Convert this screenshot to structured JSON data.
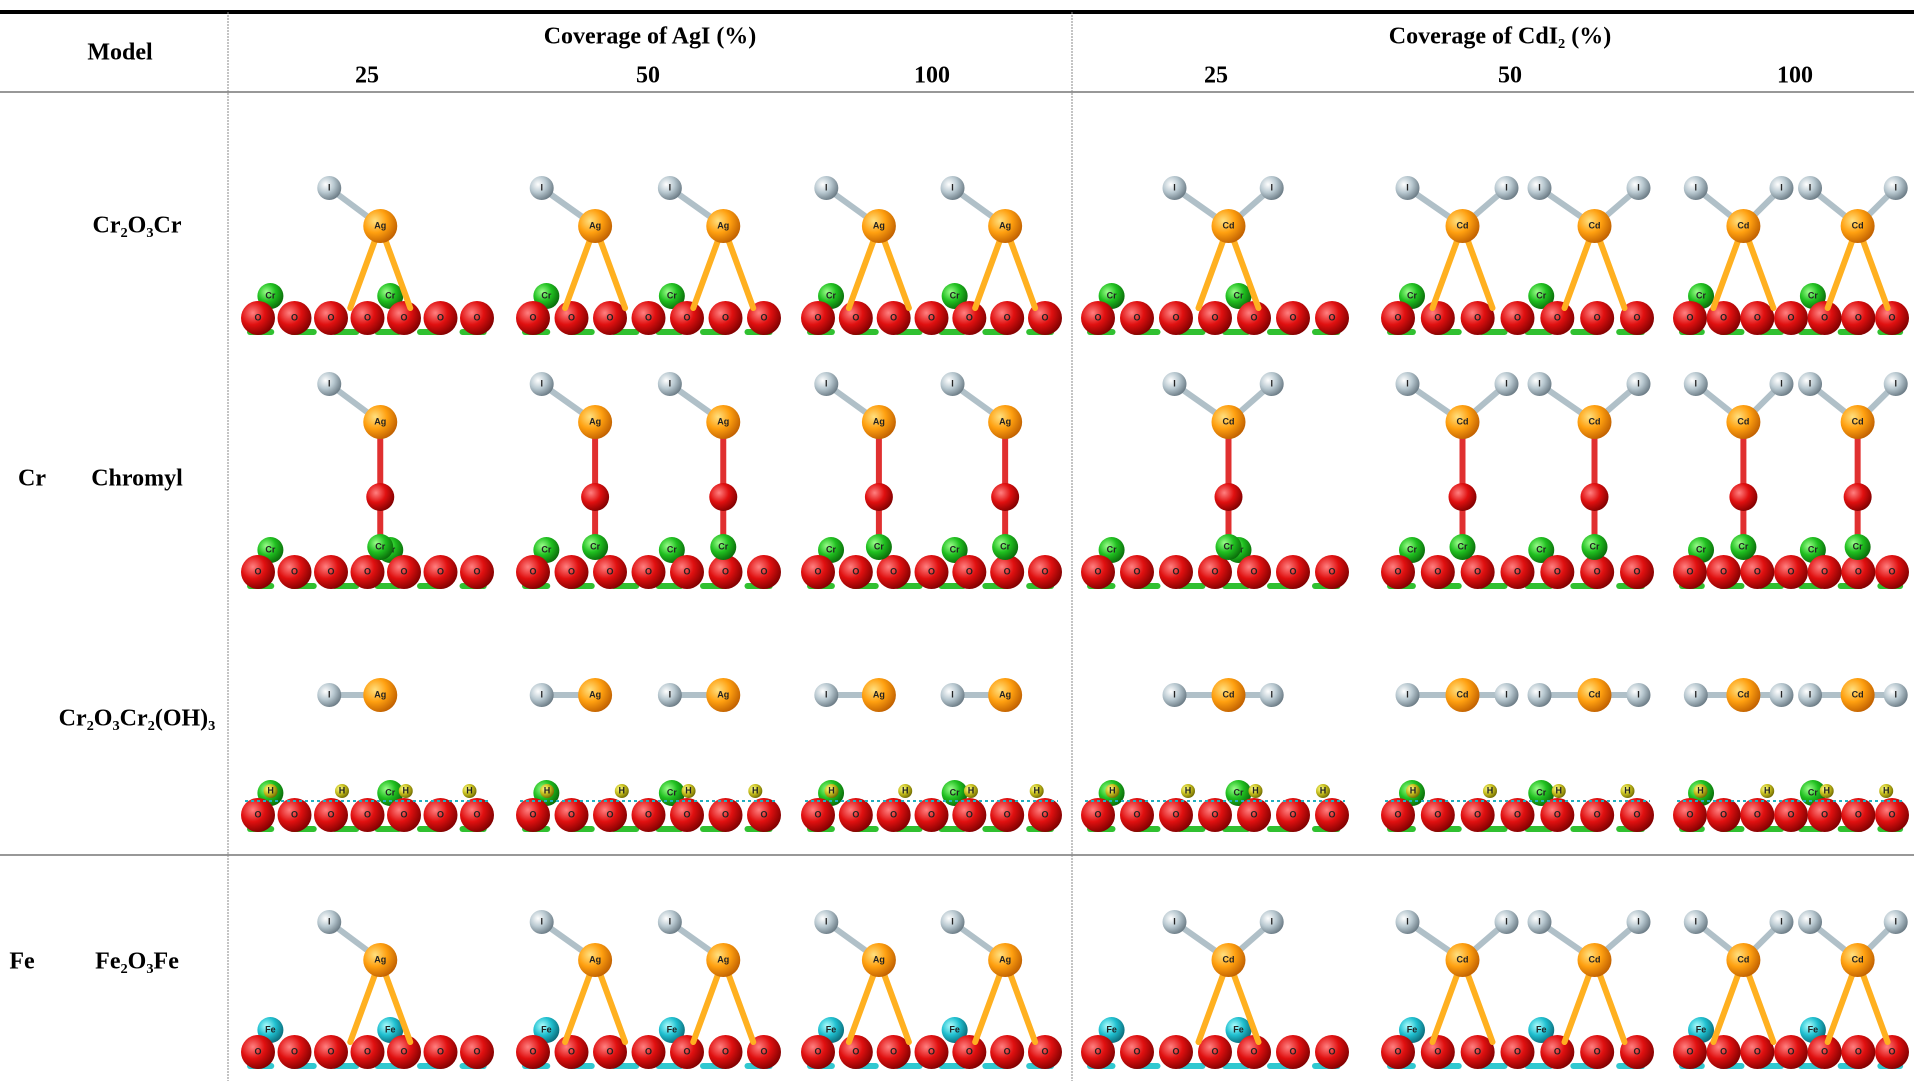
{
  "table": {
    "header": {
      "model": "Model",
      "groups": [
        {
          "title": "Coverage of AgI (%)",
          "coverages": [
            25,
            50,
            100
          ]
        },
        {
          "title": "Coverage of CdI₂ (%)",
          "coverages": [
            25,
            50,
            100
          ]
        }
      ]
    },
    "sections": [
      {
        "label": "Cr",
        "models": [
          "Cr₂O₃Cr",
          "Chromyl",
          "Cr₂O₃Cr₂(OH)₃"
        ]
      },
      {
        "label": "Fe",
        "models": [
          "Fe₂O₃Fe"
        ]
      }
    ],
    "atoms": {
      "ag": "Ag",
      "cd": "Cd",
      "i": "I",
      "o": "O",
      "cr": "Cr",
      "fe": "Fe",
      "h": "H"
    }
  }
}
